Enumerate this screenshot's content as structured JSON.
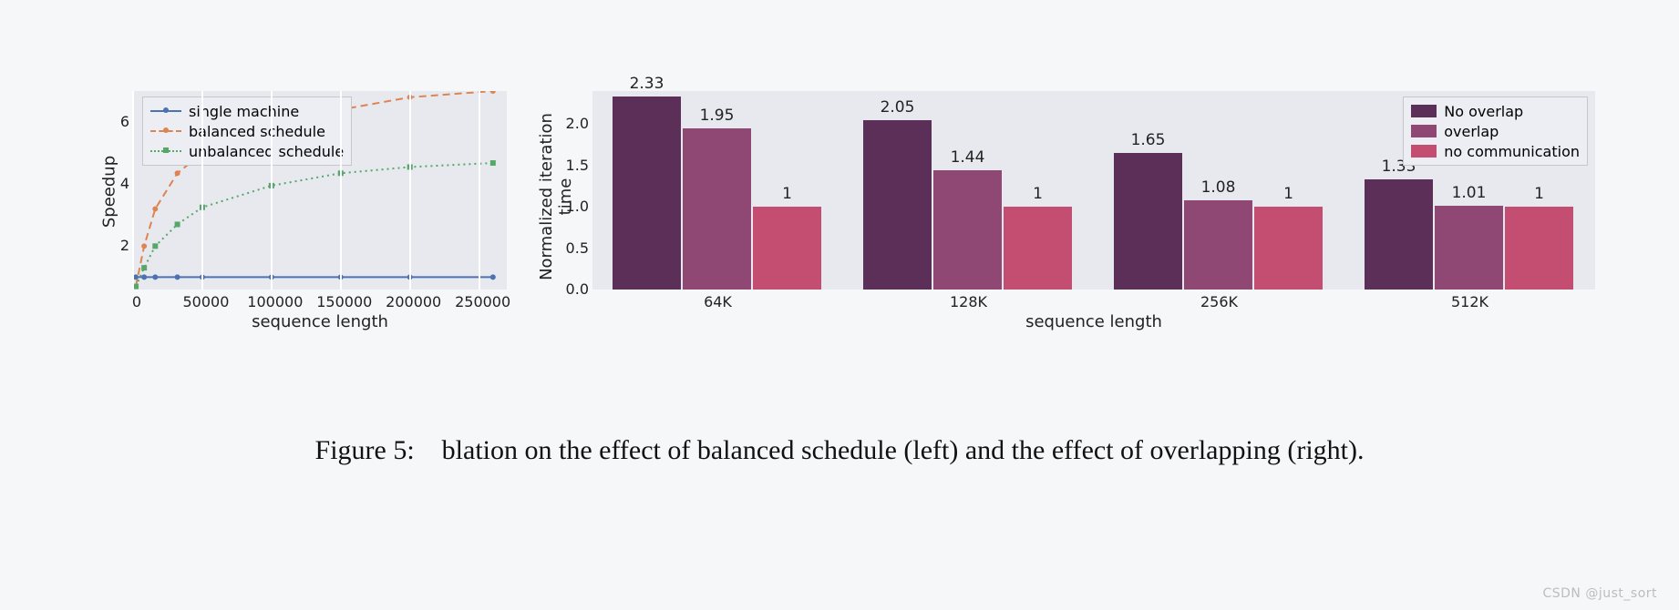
{
  "caption": "Figure 5: blation on the effect of balanced schedule (left) and the effect of overlapping (right).",
  "watermark": "CSDN @just_sort",
  "line_chart": {
    "type": "line",
    "background_color": "#e7e9ef",
    "grid_color": "#fefefe",
    "xlabel": "sequence length",
    "ylabel": "Speedup",
    "label_fontsize": 18,
    "tick_fontsize": 16,
    "xlim": [
      0,
      270000
    ],
    "xticks": [
      0,
      50000,
      100000,
      150000,
      200000,
      250000
    ],
    "xtick_labels": [
      "0",
      "50000",
      "100000",
      "150000",
      "200000",
      "250000"
    ],
    "ylim": [
      0.6,
      7.0
    ],
    "yticks": [
      2,
      4,
      6
    ],
    "legend": {
      "position": "upper-left",
      "items": [
        {
          "label": "single machine",
          "color": "#4c72b0",
          "dash": "solid",
          "marker": "circle"
        },
        {
          "label": "balanced schedule",
          "color": "#dd8452",
          "dash": "dashed",
          "marker": "circle"
        },
        {
          "label": "unbalanced schedule",
          "color": "#55a868",
          "dash": "dotted",
          "marker": "square"
        }
      ]
    },
    "series": [
      {
        "name": "single_machine",
        "color": "#4c72b0",
        "dash": "solid",
        "marker": "circle",
        "line_width": 2,
        "x": [
          2000,
          8000,
          16000,
          32000,
          50000,
          100000,
          150000,
          200000,
          260000
        ],
        "y": [
          1.0,
          1.0,
          1.0,
          1.0,
          1.0,
          1.0,
          1.0,
          1.0,
          1.0
        ]
      },
      {
        "name": "balanced_schedule",
        "color": "#dd8452",
        "dash": "dashed",
        "marker": "circle",
        "line_width": 2,
        "x": [
          2000,
          8000,
          16000,
          32000,
          50000,
          100000,
          150000,
          200000,
          260000
        ],
        "y": [
          0.7,
          2.0,
          3.2,
          4.35,
          5.0,
          5.9,
          6.4,
          6.8,
          7.0
        ]
      },
      {
        "name": "unbalanced_schedule",
        "color": "#55a868",
        "dash": "dotted",
        "marker": "square",
        "line_width": 2,
        "x": [
          2000,
          8000,
          16000,
          32000,
          50000,
          100000,
          150000,
          200000,
          260000
        ],
        "y": [
          0.7,
          1.3,
          2.0,
          2.7,
          3.25,
          3.95,
          4.35,
          4.55,
          4.68
        ]
      }
    ]
  },
  "bar_chart": {
    "type": "grouped-bar",
    "background_color": "#e7e9ef",
    "xlabel": "sequence length",
    "ylabel": "Normalized iteration time",
    "label_fontsize": 18,
    "tick_fontsize": 16,
    "categories": [
      "64K",
      "128K",
      "256K",
      "512K"
    ],
    "ylim": [
      0.0,
      2.4
    ],
    "yticks": [
      0.0,
      0.5,
      1.0,
      1.5,
      2.0
    ],
    "ytick_labels": [
      "0.0",
      "0.5",
      "1.0",
      "1.5",
      "2.0"
    ],
    "series": [
      {
        "name": "No overlap",
        "color": "#5c2f58",
        "values": [
          2.33,
          2.05,
          1.65,
          1.33
        ]
      },
      {
        "name": "overlap",
        "color": "#8f4874",
        "values": [
          1.95,
          1.44,
          1.08,
          1.01
        ]
      },
      {
        "name": "no communication",
        "color": "#c44d72",
        "values": [
          1,
          1,
          1,
          1
        ]
      }
    ],
    "value_labels": [
      [
        "2.33",
        "1.95",
        "1"
      ],
      [
        "2.05",
        "1.44",
        "1"
      ],
      [
        "1.65",
        "1.08",
        "1"
      ],
      [
        "1.33",
        "1.01",
        "1"
      ]
    ],
    "legend": {
      "position": "upper-right"
    },
    "bar_width_ratio": 0.28
  }
}
